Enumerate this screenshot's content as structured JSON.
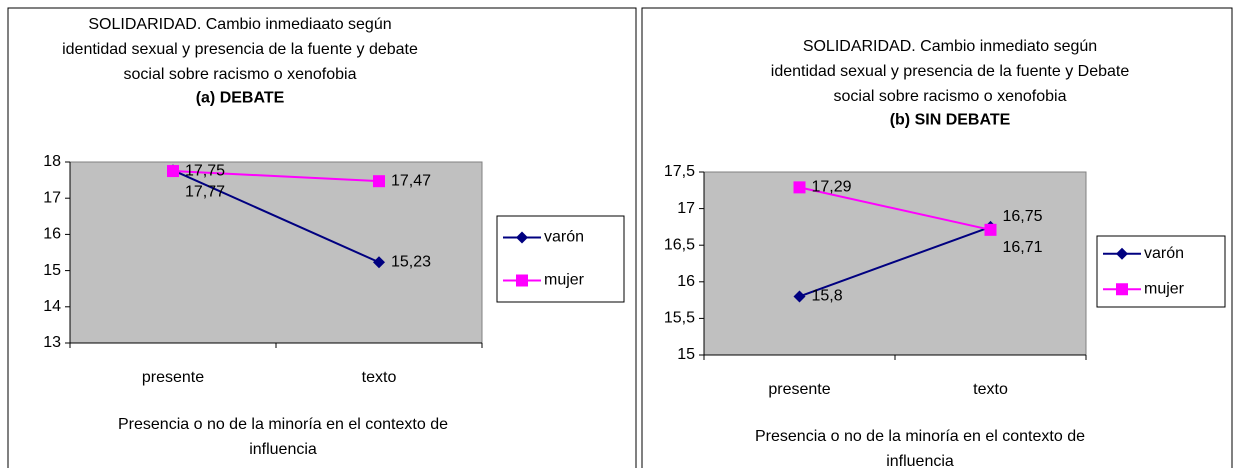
{
  "chart_data": [
    {
      "type": "line",
      "title": [
        "SOLIDARIDAD. Cambio inmediaato según",
        "identidad sexual y presencia de la fuente y debate",
        "social sobre racismo o xenofobia"
      ],
      "subtitle": "(a) DEBATE",
      "x_label": [
        "Presencia o no de la minoría en el contexto de",
        "influencia"
      ],
      "categories": [
        "presente",
        "texto"
      ],
      "series": [
        {
          "name": "varón",
          "color": "#000080",
          "marker": "diamond",
          "values": [
            17.77,
            15.23
          ],
          "value_labels": [
            "17,77",
            "15,23"
          ]
        },
        {
          "name": "mujer",
          "color": "#ff00ff",
          "marker": "square",
          "values": [
            17.75,
            17.47
          ],
          "value_labels": [
            "17,75",
            "17,47"
          ]
        }
      ],
      "ylim": [
        13,
        18
      ],
      "yticks": [
        13,
        14,
        15,
        16,
        17,
        18
      ],
      "legend": "right"
    },
    {
      "type": "line",
      "title": [
        "SOLIDARIDAD. Cambio inmediato según",
        "identidad sexual y presencia de la fuente y Debate",
        "social sobre racismo o xenofobia"
      ],
      "subtitle": "(b) SIN DEBATE",
      "x_label": [
        "Presencia o no de la minoría en el contexto de",
        "influencia"
      ],
      "categories": [
        "presente",
        "texto"
      ],
      "series": [
        {
          "name": "varón",
          "color": "#000080",
          "marker": "diamond",
          "values": [
            15.8,
            16.75
          ],
          "value_labels": [
            "15,8",
            "16,75"
          ]
        },
        {
          "name": "mujer",
          "color": "#ff00ff",
          "marker": "square",
          "values": [
            17.29,
            16.71
          ],
          "value_labels": [
            "17,29",
            "16,71"
          ]
        }
      ],
      "ylim": [
        15,
        17.5
      ],
      "yticks": [
        15,
        {
          "value": 15.5,
          "label": "15,5"
        },
        16,
        {
          "value": 16.5,
          "label": "16,5"
        },
        17,
        {
          "value": 17.5,
          "label": "17,5"
        }
      ],
      "legend": "right"
    }
  ]
}
